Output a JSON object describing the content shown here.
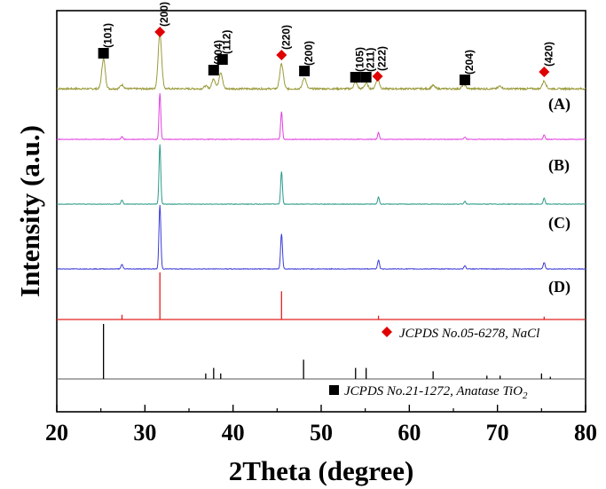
{
  "chart_data": {
    "type": "line",
    "xlabel": "2Theta (degree)",
    "ylabel": "Intensity (a.u.)",
    "xlim": [
      20,
      80
    ],
    "xticks": [
      20,
      30,
      40,
      50,
      60,
      70,
      80
    ],
    "grid": false,
    "colors": {
      "A": "#9a9a3a",
      "B": "#e040e0",
      "C": "#2a9a8a",
      "D": "#3a3ad8",
      "nacl_ref": "#e02020",
      "tio2_ref": "#000000",
      "marker_nacl": "#e00000",
      "marker_tio2": "#000000"
    },
    "series": [
      {
        "name": "",
        "peaks": [
          [
            25.3,
            0.55
          ],
          [
            27.4,
            0.07
          ],
          [
            31.7,
            1.0
          ],
          [
            36.9,
            0.05
          ],
          [
            37.8,
            0.18
          ],
          [
            38.6,
            0.3
          ],
          [
            45.5,
            0.45
          ],
          [
            48.1,
            0.2
          ],
          [
            53.9,
            0.12
          ],
          [
            55.1,
            0.1
          ],
          [
            56.4,
            0.18
          ],
          [
            62.7,
            0.06
          ],
          [
            66.2,
            0.08
          ],
          [
            70.3,
            0.05
          ],
          [
            75.3,
            0.14
          ]
        ]
      },
      {
        "name": "(A)",
        "peaks": [
          [
            27.4,
            0.06
          ],
          [
            31.7,
            1.0
          ],
          [
            45.5,
            0.6
          ],
          [
            56.5,
            0.15
          ],
          [
            66.3,
            0.05
          ],
          [
            75.3,
            0.1
          ]
        ]
      },
      {
        "name": "(B)",
        "peaks": [
          [
            27.4,
            0.07
          ],
          [
            31.7,
            1.0
          ],
          [
            45.5,
            0.55
          ],
          [
            56.5,
            0.12
          ],
          [
            66.3,
            0.05
          ],
          [
            75.3,
            0.1
          ]
        ]
      },
      {
        "name": "(C)",
        "peaks": [
          [
            27.4,
            0.07
          ],
          [
            31.7,
            1.0
          ],
          [
            45.5,
            0.55
          ],
          [
            56.5,
            0.14
          ],
          [
            66.3,
            0.05
          ],
          [
            75.3,
            0.1
          ]
        ]
      },
      {
        "name": "(D)",
        "peaks": [
          [
            27.4,
            0.1
          ],
          [
            31.7,
            1.0
          ],
          [
            45.5,
            0.6
          ],
          [
            56.5,
            0.08
          ],
          [
            75.3,
            0.06
          ]
        ]
      },
      {
        "name": "JCPDS No.21-1272, Anatase TiO2",
        "peaks": [
          [
            25.3,
            1.0
          ],
          [
            36.9,
            0.1
          ],
          [
            37.8,
            0.2
          ],
          [
            38.6,
            0.1
          ],
          [
            48.0,
            0.35
          ],
          [
            53.9,
            0.2
          ],
          [
            55.1,
            0.2
          ],
          [
            62.7,
            0.14
          ],
          [
            68.8,
            0.06
          ],
          [
            70.3,
            0.06
          ],
          [
            75.0,
            0.1
          ],
          [
            76.0,
            0.04
          ]
        ]
      }
    ],
    "annotations": [
      {
        "label": "(101)",
        "x": 25.3,
        "marker": "square"
      },
      {
        "label": "(200)",
        "x": 31.7,
        "marker": "diamond"
      },
      {
        "label": "(004)",
        "x": 37.8,
        "marker": "square"
      },
      {
        "label": "(112)",
        "x": 38.8,
        "marker": "square"
      },
      {
        "label": "(220)",
        "x": 45.5,
        "marker": "diamond"
      },
      {
        "label": "(200)",
        "x": 48.1,
        "marker": "square"
      },
      {
        "label": "(105)",
        "x": 53.9,
        "marker": "square"
      },
      {
        "label": "(211)",
        "x": 55.1,
        "marker": "square"
      },
      {
        "label": "(222)",
        "x": 56.4,
        "marker": "diamond"
      },
      {
        "label": "(204)",
        "x": 66.3,
        "marker": "square"
      },
      {
        "label": "(420)",
        "x": 75.3,
        "marker": "diamond"
      }
    ],
    "legend": [
      {
        "marker": "diamond",
        "text_main": "JCPDS No.05-6278, NaCl",
        "text_sub": ""
      },
      {
        "marker": "square",
        "text_main": "JCPDS No.21-1272, Anatase TiO",
        "text_sub": "2"
      }
    ]
  }
}
